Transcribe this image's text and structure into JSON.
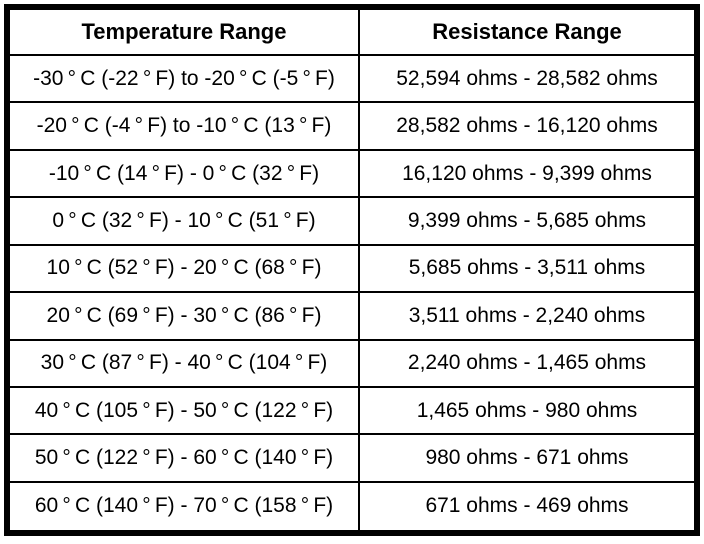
{
  "colors": {
    "background": "#ffffff",
    "border": "#000000",
    "text": "#000000"
  },
  "table": {
    "headers": [
      "Temperature Range",
      "Resistance Range"
    ],
    "rows": [
      [
        "-30 ° C (-22 ° F) to -20 ° C (-5 ° F)",
        "52,594 ohms - 28,582 ohms"
      ],
      [
        "-20 ° C (-4 ° F) to -10 ° C (13 ° F)",
        "28,582 ohms - 16,120 ohms"
      ],
      [
        "-10 ° C (14 ° F) - 0 ° C (32 ° F)",
        "16,120 ohms - 9,399 ohms"
      ],
      [
        "0 ° C (32 ° F) - 10 ° C (51 ° F)",
        "9,399 ohms - 5,685 ohms"
      ],
      [
        "10 ° C (52 ° F) - 20 ° C (68 ° F)",
        "5,685 ohms - 3,511 ohms"
      ],
      [
        "20 ° C (69 ° F) - 30 ° C (86 ° F)",
        "3,511 ohms - 2,240 ohms"
      ],
      [
        "30 ° C (87 ° F) - 40 ° C (104 ° F)",
        "2,240 ohms - 1,465 ohms"
      ],
      [
        "40 ° C (105 ° F) - 50 ° C (122 ° F)",
        "1,465 ohms - 980 ohms"
      ],
      [
        "50 ° C (122 ° F) - 60 ° C (140 ° F)",
        "980 ohms - 671 ohms"
      ],
      [
        "60 ° C (140 ° F) - 70 ° C (158 ° F)",
        "671 ohms - 469 ohms"
      ]
    ]
  }
}
